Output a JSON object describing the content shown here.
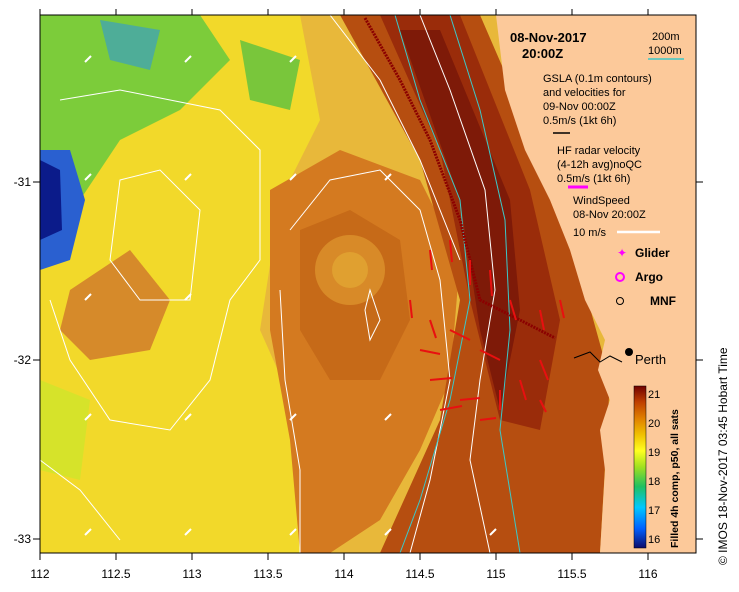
{
  "header": {
    "date": "08-Nov-2017",
    "time": "20:00Z"
  },
  "depth_legend": {
    "contour_a": "200m",
    "contour_b": "1000m",
    "contour_b_color": "#3cc8c8"
  },
  "gsla": {
    "line1": "GSLA (0.1m contours)",
    "line2": "and velocities for",
    "line3": "09-Nov 00:00Z",
    "scale": "0.5m/s (1kt 6h)",
    "arrow_color": "#000000"
  },
  "hf_radar": {
    "line1": "HF radar velocity",
    "line2": "(4-12h avg)noQC",
    "scale": "0.5m/s (1kt 6h)",
    "arrow_color": "#ff00ff"
  },
  "wind": {
    "line1": "WindSpeed",
    "line2": "08-Nov 20:00Z",
    "scale": "10 m/s",
    "arrow_color": "#ffffff"
  },
  "markers": {
    "glider": "Glider",
    "argo": "Argo",
    "mnf": "MNF",
    "glider_color": "#ff00ff",
    "argo_color": "#ff00ff"
  },
  "city": {
    "name": "Perth"
  },
  "axes": {
    "x_ticks": [
      "112",
      "112.5",
      "113",
      "113.5",
      "114",
      "114.5",
      "115",
      "115.5",
      "116"
    ],
    "y_ticks": [
      "-31",
      "-32",
      "-33"
    ]
  },
  "colorbar": {
    "ticks": [
      "21",
      "20",
      "19",
      "18",
      "17",
      "16"
    ],
    "label": "Filled 4h comp, p50, all sats",
    "stops": [
      "#0b0b6b",
      "#0060ff",
      "#00c8ff",
      "#20c060",
      "#a0e020",
      "#ffff20",
      "#f0c000",
      "#e08000",
      "#c04000",
      "#700000"
    ]
  },
  "side_label": "© IMOS 18-Nov-2017 03:45 Hobart Time",
  "palette": {
    "land": "#fcc99a",
    "sst_cool": "#f2d92a",
    "sst_mid": "#e3a035",
    "sst_warm": "#c05a10",
    "sst_hot": "#8a1a0a",
    "green": "#50c040",
    "blue": "#1a40c0",
    "current": "#e81010",
    "glider_track": "#8b0000"
  }
}
